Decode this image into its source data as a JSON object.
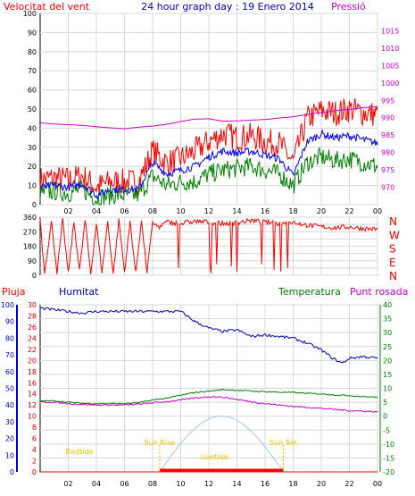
{
  "header": {
    "left_label": "Velocitat del vent",
    "title": "24 hour graph day : 19 Enero 2014",
    "right_label": "Pressió"
  },
  "colors": {
    "wind": "#ff0000",
    "gust_avg": "#0000ff",
    "low": "#008000",
    "pressure": "#cc00cc",
    "rain": "#ff0000",
    "humidity": "#0000cc",
    "temperature": "#007f00",
    "dewpoint": "#cc00cc",
    "sun": "#a8c8ec",
    "sun_label": "#f0c000",
    "frame": "#000000",
    "grid": "#d8d8d8"
  },
  "chart_data": [
    {
      "id": "wind",
      "type": "line",
      "title": "24 hour graph day : 19 Enero 2014",
      "ylabel_left": "Velocitat del vent",
      "ylabel_right": "Pressió",
      "x_ticks": [
        "02",
        "04",
        "06",
        "08",
        "10",
        "12",
        "14",
        "16",
        "18",
        "20",
        "22",
        "00"
      ],
      "y_left": {
        "min": 0,
        "max": 100,
        "ticks": [
          0,
          10,
          20,
          30,
          40,
          50,
          60,
          70,
          80,
          90,
          100
        ]
      },
      "y_right": {
        "min": 965,
        "max": 1020,
        "ticks": [
          970,
          975,
          980,
          985,
          990,
          995,
          1000,
          1005,
          1010,
          1015
        ]
      },
      "series": [
        {
          "key": "wind_max",
          "color_key": "wind",
          "axis": "left",
          "x": [
            0,
            1,
            2,
            3,
            4,
            5,
            6,
            7,
            8,
            9,
            10,
            11,
            12,
            13,
            14,
            15,
            16,
            17,
            18,
            19,
            20,
            21,
            22,
            23,
            24
          ],
          "y": [
            13,
            14,
            13,
            15,
            9,
            12,
            12,
            12,
            28,
            22,
            24,
            28,
            33,
            37,
            35,
            36,
            33,
            32,
            22,
            45,
            49,
            48,
            50,
            48,
            47
          ]
        },
        {
          "key": "wind_avg",
          "color_key": "gust_avg",
          "axis": "left",
          "x": [
            0,
            1,
            2,
            3,
            4,
            5,
            6,
            7,
            8,
            9,
            10,
            11,
            12,
            13,
            14,
            15,
            16,
            17,
            18,
            19,
            20,
            21,
            22,
            23,
            24
          ],
          "y": [
            9,
            10,
            9,
            11,
            5,
            8,
            8,
            8,
            22,
            16,
            18,
            20,
            25,
            28,
            27,
            28,
            26,
            24,
            15,
            33,
            37,
            35,
            36,
            34,
            32
          ]
        },
        {
          "key": "wind_low",
          "color_key": "low",
          "axis": "left",
          "x": [
            0,
            1,
            2,
            3,
            4,
            5,
            6,
            7,
            8,
            9,
            10,
            11,
            12,
            13,
            14,
            15,
            16,
            17,
            18,
            19,
            20,
            21,
            22,
            23,
            24
          ],
          "y": [
            6,
            7,
            6,
            8,
            3,
            5,
            5,
            5,
            15,
            10,
            12,
            12,
            16,
            18,
            19,
            20,
            18,
            16,
            10,
            22,
            25,
            23,
            24,
            22,
            20
          ]
        },
        {
          "key": "pressure",
          "color_key": "pressure",
          "axis": "right",
          "x": [
            0,
            1,
            2,
            3,
            4,
            5,
            6,
            7,
            8,
            9,
            10,
            11,
            12,
            13,
            14,
            15,
            16,
            17,
            18,
            19,
            20,
            21,
            22,
            23,
            24
          ],
          "y": [
            988.5,
            988.2,
            988.0,
            987.8,
            987.4,
            987.1,
            986.8,
            987.3,
            987.6,
            988.1,
            988.9,
            989.6,
            989.7,
            989.0,
            989.1,
            989.3,
            989.5,
            989.9,
            990.3,
            990.9,
            991.5,
            992.0,
            992.4,
            992.9,
            993.2
          ]
        }
      ]
    },
    {
      "id": "direction",
      "type": "line",
      "y_left": {
        "min": 0,
        "max": 360,
        "ticks": [
          0,
          45,
          90,
          135,
          180,
          225,
          270,
          315,
          360
        ]
      },
      "compass": [
        "N",
        "W",
        "S",
        "E",
        "N"
      ],
      "series": [
        {
          "key": "direction",
          "color_key": "wind",
          "x": [
            0,
            0.3,
            0.8,
            1.2,
            1.6,
            2.0,
            2.4,
            2.8,
            3.2,
            3.6,
            4.0,
            4.4,
            4.8,
            5.2,
            5.6,
            6.0,
            6.4,
            6.8,
            7.2,
            7.6,
            8.0,
            8.5,
            9.0,
            10,
            11,
            12,
            13,
            14,
            15,
            16,
            17,
            18,
            19,
            20,
            21,
            22,
            23,
            24
          ],
          "y": [
            350,
            10,
            330,
            20,
            340,
            10,
            330,
            30,
            340,
            10,
            320,
            20,
            330,
            10,
            340,
            20,
            330,
            10,
            340,
            20,
            320,
            300,
            330,
            320,
            335,
            330,
            320,
            325,
            340,
            330,
            320,
            330,
            310,
            300,
            295,
            300,
            290,
            285
          ]
        }
      ]
    },
    {
      "id": "thp",
      "type": "line",
      "left_label": "Pluja",
      "humidity_label": "Humitat",
      "temperature_label": "Temperatura",
      "dewpoint_label": "Punt rosada",
      "x_ticks": [
        "02",
        "04",
        "06",
        "08",
        "10",
        "12",
        "14",
        "16",
        "18",
        "20",
        "22",
        "00"
      ],
      "y_left_outer": {
        "min": 0,
        "max": 100,
        "ticks": [
          0,
          10,
          20,
          30,
          40,
          50,
          60,
          70,
          80,
          90,
          100
        ]
      },
      "y_left_inner": {
        "min": 0,
        "max": 30,
        "ticks": [
          0,
          2,
          4,
          6,
          8,
          10,
          12,
          14,
          16,
          18,
          20,
          22,
          24,
          26,
          28,
          30
        ]
      },
      "y_right": {
        "min": -20,
        "max": 40,
        "ticks": [
          -20,
          -15,
          -10,
          -5,
          0,
          5,
          10,
          15,
          20,
          25,
          30,
          35,
          40
        ]
      },
      "sun_labels": {
        "badtide": "Badtide",
        "sunrise": "Sun Rise",
        "lowtide": "Lowtide",
        "sunset": "Sun Set"
      },
      "sun": {
        "rise_hour": 8.5,
        "set_hour": 17.3,
        "peak_hour": 12.9,
        "peak_temp": 0,
        "base_temp": -20
      },
      "series": [
        {
          "key": "humidity",
          "color_key": "humidity",
          "axis": "left_outer",
          "x": [
            0,
            1,
            2,
            3,
            4,
            5,
            6,
            7,
            8,
            9,
            10,
            11,
            12,
            13,
            14,
            15,
            16,
            17,
            18,
            19,
            20,
            20.8,
            21.5,
            22,
            23,
            24
          ],
          "y": [
            98,
            97,
            96,
            95,
            96,
            96,
            96,
            96,
            96,
            96,
            96,
            90,
            86,
            84,
            85,
            81,
            82,
            81,
            80,
            77,
            73,
            68,
            65,
            68,
            69,
            68
          ]
        },
        {
          "key": "temperature",
          "color_key": "temperature",
          "axis": "right",
          "x": [
            0,
            1,
            2,
            3,
            4,
            5,
            6,
            7,
            8,
            9,
            10,
            11,
            12,
            13,
            14,
            15,
            16,
            17,
            18,
            19,
            20,
            21,
            22,
            23,
            24
          ],
          "y": [
            5.5,
            5.5,
            5.0,
            4.6,
            4.5,
            4.5,
            4.5,
            4.8,
            5.8,
            6.5,
            7.5,
            8.5,
            9.0,
            9.5,
            9.3,
            9.0,
            8.8,
            8.6,
            8.5,
            8.2,
            8.0,
            7.6,
            7.4,
            7.0,
            6.8
          ]
        },
        {
          "key": "dewpoint",
          "color_key": "dewpoint",
          "axis": "right",
          "x": [
            0,
            1,
            2,
            3,
            4,
            5,
            6,
            7,
            8,
            9,
            10,
            11,
            12,
            13,
            14,
            15,
            16,
            17,
            18,
            19,
            20,
            21,
            22,
            23,
            24
          ],
          "y": [
            5.0,
            5.0,
            4.5,
            4.2,
            4.0,
            4.0,
            4.0,
            4.3,
            4.8,
            5.2,
            5.8,
            6.5,
            7.0,
            6.8,
            6.0,
            5.2,
            4.5,
            4.0,
            3.5,
            3.2,
            2.8,
            2.4,
            2.0,
            1.8,
            1.6
          ]
        },
        {
          "key": "rain",
          "color_key": "rain",
          "axis": "left_inner",
          "x": [
            0,
            24
          ],
          "y": [
            0,
            0
          ]
        }
      ]
    }
  ]
}
